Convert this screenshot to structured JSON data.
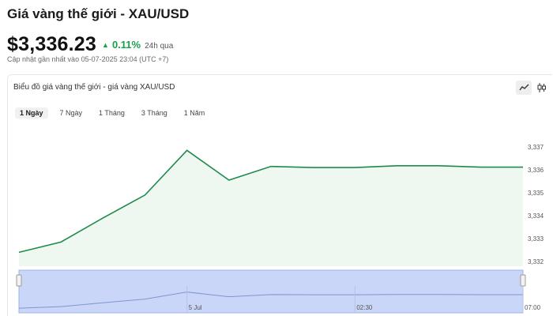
{
  "header": {
    "title": "Giá vàng thế giới - XAU/USD",
    "price": "$3,336.23",
    "change_arrow": "▲",
    "change": "0.11%",
    "change_period": "24h qua",
    "updated": "Cập nhật gần nhất vào 05-07-2025 23:04 (UTC +7)"
  },
  "card": {
    "title": "Biểu đồ giá vàng thế giới - giá vàng XAU/USD",
    "tools": {
      "line_icon": "line-chart-icon",
      "candle_icon": "candlestick-icon"
    },
    "ranges": [
      "1 Ngày",
      "7 Ngày",
      "1 Tháng",
      "3 Tháng",
      "1 Năm"
    ],
    "active_range": "1 Ngày"
  },
  "colors": {
    "line": "#1f8a4c",
    "fill": "#eef8f1",
    "navigator_fill": "#c9d6f7",
    "navigator_border": "#9fb3e8",
    "up": "#16a34a"
  },
  "chart_data": {
    "type": "area",
    "x": [
      0,
      1,
      2,
      3,
      4,
      5,
      6,
      7,
      8,
      9,
      10,
      11,
      12
    ],
    "values": [
      3332.4,
      3332.85,
      3333.9,
      3334.9,
      3336.85,
      3335.55,
      3336.15,
      3336.1,
      3336.1,
      3336.18,
      3336.18,
      3336.12,
      3336.12
    ],
    "ylim": [
      3332,
      3337.2
    ],
    "yticks": [
      "3,337",
      "3,336",
      "3,335",
      "3,334",
      "3,333",
      "3,332"
    ],
    "ytick_values": [
      3337,
      3336,
      3335,
      3334,
      3333,
      3332
    ],
    "navigator_labels": [
      {
        "label": "5 Jul",
        "x": 4
      },
      {
        "label": "02:30",
        "x": 8
      },
      {
        "label": "07:00",
        "x": 12
      }
    ]
  }
}
